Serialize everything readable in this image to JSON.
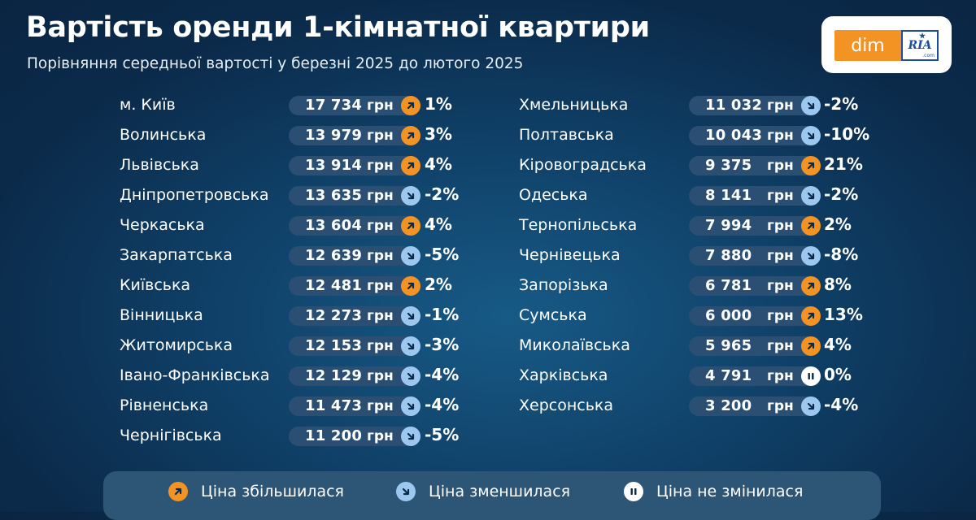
{
  "header": {
    "title": "Вартість оренди 1-кімнатної квартири",
    "subtitle": "Порівняння середньої вартості у березні 2025 до лютого 2025"
  },
  "logo": {
    "dim": "dim",
    "ria": "RIA",
    "com": ".com"
  },
  "colors": {
    "up": "#f39324",
    "down": "#9cc8f0",
    "same": "#ffffff",
    "pill": "#2b4f72"
  },
  "chart_data": {
    "type": "table",
    "title": "Вартість оренди 1-кімнатної квартири",
    "subtitle": "Порівняння середньої вартості у березні 2025 до лютого 2025",
    "columns": [
      "region",
      "price",
      "unit",
      "trend",
      "change"
    ],
    "rows_left": [
      {
        "region": "м. Київ",
        "price": "17 734",
        "unit": "грн",
        "trend": "up",
        "change": "1%"
      },
      {
        "region": "Волинська",
        "price": "13 979",
        "unit": "грн",
        "trend": "up",
        "change": "3%"
      },
      {
        "region": "Львівська",
        "price": "13 914",
        "unit": "грн",
        "trend": "up",
        "change": "4%"
      },
      {
        "region": "Дніпропетровська",
        "price": "13 635",
        "unit": "грн",
        "trend": "down",
        "change": "-2%"
      },
      {
        "region": "Черкаська",
        "price": "13 604",
        "unit": "грн",
        "trend": "up",
        "change": "4%"
      },
      {
        "region": "Закарпатська",
        "price": "12 639",
        "unit": "грн",
        "trend": "down",
        "change": "-5%"
      },
      {
        "region": "Київська",
        "price": "12 481",
        "unit": "грн",
        "trend": "up",
        "change": "2%"
      },
      {
        "region": "Вінницька",
        "price": "12 273",
        "unit": "грн",
        "trend": "down",
        "change": "-1%"
      },
      {
        "region": "Житомирська",
        "price": "12 153",
        "unit": "грн",
        "trend": "down",
        "change": "-3%"
      },
      {
        "region": "Івано-Франківська",
        "price": "12 129",
        "unit": "грн",
        "trend": "down",
        "change": "-4%"
      },
      {
        "region": "Рівненська",
        "price": "11 473",
        "unit": "грн",
        "trend": "down",
        "change": "-4%"
      },
      {
        "region": "Чернігівська",
        "price": "11 200",
        "unit": "грн",
        "trend": "down",
        "change": "-5%"
      }
    ],
    "rows_right": [
      {
        "region": "Хмельницька",
        "price": "11 032",
        "unit": "грн",
        "trend": "down",
        "change": "-2%"
      },
      {
        "region": "Полтавська",
        "price": "10 043",
        "unit": "грн",
        "trend": "down",
        "change": "-10%"
      },
      {
        "region": "Кіровоградська",
        "price": "9 375",
        "unit": "грн",
        "trend": "up",
        "change": "21%"
      },
      {
        "region": "Одеська",
        "price": "8 141",
        "unit": "грн",
        "trend": "down",
        "change": "-2%"
      },
      {
        "region": "Тернопільська",
        "price": "7 994",
        "unit": "грн",
        "trend": "up",
        "change": "2%"
      },
      {
        "region": "Чернівецька",
        "price": "7 880",
        "unit": "грн",
        "trend": "down",
        "change": "-8%"
      },
      {
        "region": "Запорізька",
        "price": "6 781",
        "unit": "грн",
        "trend": "up",
        "change": "8%"
      },
      {
        "region": "Сумська",
        "price": "6 000",
        "unit": "грн",
        "trend": "up",
        "change": "13%"
      },
      {
        "region": "Миколаївська",
        "price": "5 965",
        "unit": "грн",
        "trend": "up",
        "change": "4%"
      },
      {
        "region": "Харківська",
        "price": "4 791",
        "unit": "грн",
        "trend": "same",
        "change": "0%"
      },
      {
        "region": "Херсонська",
        "price": "3 200",
        "unit": "грн",
        "trend": "down",
        "change": "-4%"
      }
    ]
  },
  "legend": {
    "items": [
      {
        "trend": "up",
        "label": "Ціна збільшилася",
        "icon": "arrow-up-right-icon"
      },
      {
        "trend": "down",
        "label": "Ціна зменшилася",
        "icon": "arrow-down-right-icon"
      },
      {
        "trend": "same",
        "label": "Ціна не змінилася",
        "icon": "pause-icon"
      }
    ]
  }
}
